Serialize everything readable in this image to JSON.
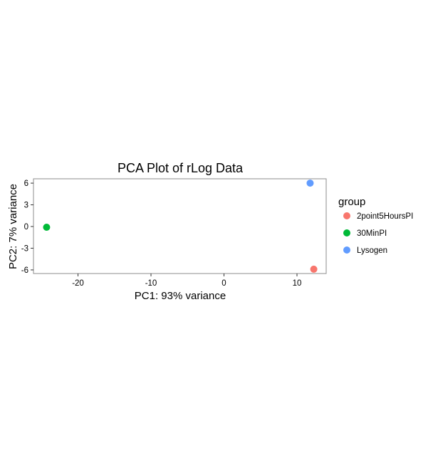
{
  "chart_data": {
    "type": "scatter",
    "title": "PCA Plot of rLog Data",
    "xlabel": "PC1: 93% variance",
    "ylabel": "PC2: 7% variance",
    "xlim": [
      -26.1,
      14.0
    ],
    "ylim": [
      -6.5,
      6.6
    ],
    "xticks": [
      -20,
      -10,
      0,
      10
    ],
    "yticks": [
      6,
      3,
      0,
      -3,
      -6
    ],
    "x_tick_labels": [
      "-20",
      "-10",
      "0",
      "10"
    ],
    "y_tick_labels": [
      "6",
      "3",
      "0",
      "-3",
      "-6"
    ],
    "grid": false,
    "legend": {
      "title": "group",
      "position": "right",
      "entries": [
        {
          "label": "2point5HoursPI",
          "color": "#F8766D"
        },
        {
          "label": "30MinPI",
          "color": "#00BA38"
        },
        {
          "label": "Lysogen",
          "color": "#619CFF"
        }
      ]
    },
    "points": [
      {
        "group": "2point5HoursPI",
        "x": 12.3,
        "y": -5.9,
        "color": "#F8766D"
      },
      {
        "group": "30MinPI",
        "x": -24.3,
        "y": -0.1,
        "color": "#00BA38"
      },
      {
        "group": "Lysogen",
        "x": 11.8,
        "y": 6.0,
        "color": "#619CFF"
      }
    ]
  }
}
